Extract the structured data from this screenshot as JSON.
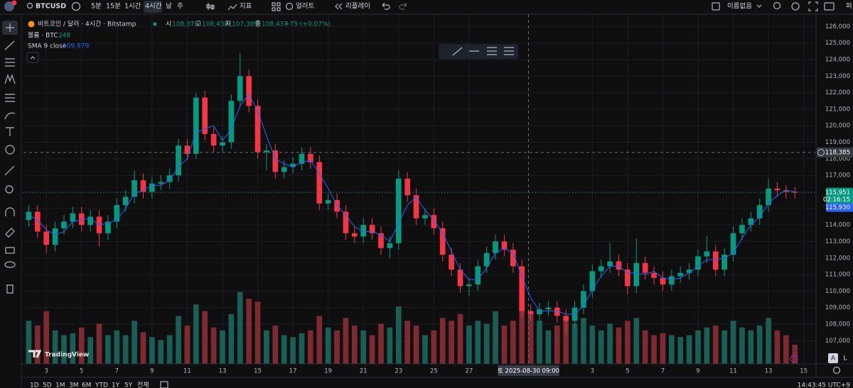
{
  "toolbar": {
    "symbol": "BTCUSD",
    "intervals": [
      "5분",
      "15분",
      "1시간",
      "4시간",
      "날",
      "주"
    ],
    "indicators": "지표",
    "alert": "얼러트",
    "replay": "리플레이",
    "layout_name": "이름없음",
    "publish": "퍼"
  },
  "legend": {
    "title": "비트코인 / 달러 · 4시간 · Bitstamp",
    "ohlc": [
      {
        "key": "시",
        "value": "108,376"
      },
      {
        "key": "고",
        "value": "108,438"
      },
      {
        "key": "저",
        "value": "107,389"
      },
      {
        "key": "종",
        "value": "108,437"
      }
    ],
    "change": "+75 (+0.07%)",
    "volume_name": "볼륨 · BTC",
    "volume_value": "248",
    "sma_name": "SMA 9 close",
    "sma_value": "109,979"
  },
  "watermark": "TradingView",
  "bottom_bar": {
    "ranges": [
      "1D",
      "5D",
      "1M",
      "3M",
      "6M",
      "YTD",
      "1Y",
      "5Y",
      "전체"
    ],
    "clock": "14:43:45 UTC+9",
    "buttons": [
      "A",
      "L"
    ]
  },
  "chart_data": {
    "type": "candlestick",
    "up_color": "#089981",
    "down_color": "#f23645",
    "x": [
      2,
      2.5,
      3,
      3.5,
      4,
      4.5,
      5,
      5.5,
      6,
      6.5,
      7,
      7.5,
      8,
      8.5,
      9,
      9.5,
      10,
      10.5,
      11,
      11.5,
      12,
      12.5,
      13,
      13.5,
      14,
      14.5,
      15,
      15.5,
      16,
      16.5,
      17,
      17.5,
      18,
      18.5,
      19,
      19.5,
      20,
      20.5,
      21,
      21.5,
      22,
      22.5,
      23,
      23.5,
      24,
      24.5,
      25,
      25.5,
      26,
      26.5,
      27,
      27.5,
      28,
      28.5,
      29,
      29.5,
      30,
      30.5,
      31,
      31.5,
      32,
      32.5,
      33,
      33.5,
      34,
      34.5,
      35,
      35.5,
      36,
      36.5,
      37,
      37.5,
      38,
      38.5,
      39,
      39.5,
      40,
      40.5,
      41,
      41.5,
      42,
      42.5,
      43,
      43.5,
      44,
      44.5,
      45,
      45.5
    ],
    "open": [
      114300,
      114800,
      113600,
      112800,
      113800,
      114200,
      114700,
      114000,
      114500,
      113500,
      114200,
      115200,
      115700,
      116700,
      116000,
      116500,
      116600,
      117000,
      118800,
      118300,
      121700,
      119500,
      118800,
      119000,
      121500,
      123000,
      121200,
      118400,
      118500,
      117200,
      117500,
      117700,
      118300,
      117800,
      115300,
      115500,
      114800,
      113500,
      113300,
      114000,
      113500,
      112600,
      112900,
      116800,
      115800,
      114400,
      114600,
      113800,
      112200,
      111300,
      110300,
      110400,
      111500,
      112300,
      113000,
      112500,
      111500,
      108800,
      108600,
      108900,
      109000,
      108500,
      108200,
      109000,
      110000,
      111200,
      111500,
      111800,
      111300,
      110300,
      111700,
      111100,
      110800,
      110400,
      110900,
      111100,
      111300,
      112100,
      112400,
      111300,
      112200,
      113500,
      114000,
      114400,
      115200,
      116200,
      116100,
      116000
    ],
    "high": [
      115200,
      115200,
      114000,
      114200,
      114600,
      115100,
      115100,
      114900,
      114900,
      114600,
      115600,
      116100,
      117300,
      117100,
      116900,
      117000,
      117400,
      119200,
      119200,
      122000,
      122100,
      119900,
      119400,
      121900,
      124400,
      123400,
      121600,
      118900,
      118900,
      117900,
      118100,
      118700,
      118700,
      118200,
      115900,
      115900,
      115200,
      113900,
      114400,
      114400,
      113900,
      113300,
      117300,
      117200,
      116200,
      115000,
      115000,
      114200,
      112600,
      111700,
      110800,
      111900,
      112700,
      113400,
      113400,
      112900,
      111900,
      109200,
      109300,
      109400,
      109400,
      108900,
      109400,
      110400,
      111600,
      111900,
      112900,
      112200,
      111700,
      113200,
      112100,
      111500,
      111200,
      111300,
      111500,
      111700,
      112500,
      113300,
      112800,
      112600,
      113900,
      114400,
      114800,
      115600,
      116800,
      116600,
      116400,
      116300
    ],
    "low": [
      113900,
      113200,
      112300,
      112400,
      113400,
      113800,
      113600,
      113600,
      112700,
      113100,
      113800,
      114800,
      115300,
      115600,
      115600,
      116100,
      116200,
      116600,
      117900,
      118000,
      119100,
      118400,
      118400,
      118600,
      121100,
      120800,
      118000,
      117300,
      116800,
      116800,
      117100,
      117300,
      117400,
      114900,
      114900,
      114400,
      113100,
      112900,
      112900,
      113100,
      112200,
      112000,
      112500,
      115400,
      114000,
      114000,
      113400,
      111800,
      110900,
      109900,
      109700,
      110000,
      111100,
      111900,
      112100,
      111100,
      108400,
      108200,
      108200,
      108500,
      108100,
      107400,
      107800,
      108600,
      109600,
      110800,
      111100,
      110900,
      109800,
      109900,
      110700,
      110400,
      110000,
      110000,
      110500,
      110700,
      110900,
      111700,
      110900,
      110900,
      111800,
      113100,
      113600,
      114000,
      114800,
      115700,
      115600,
      115600
    ],
    "close": [
      114800,
      113600,
      112800,
      113800,
      114200,
      114700,
      114000,
      114500,
      113500,
      114200,
      115200,
      115700,
      116700,
      116000,
      116500,
      116600,
      117000,
      118800,
      118300,
      121700,
      119500,
      118800,
      119000,
      121500,
      123000,
      121200,
      118400,
      118500,
      117200,
      117500,
      117700,
      118300,
      117800,
      115300,
      115500,
      114800,
      113500,
      113300,
      114000,
      113500,
      112600,
      112900,
      116800,
      115800,
      114400,
      114600,
      113800,
      112200,
      111300,
      110300,
      110400,
      111500,
      112300,
      113000,
      112500,
      111500,
      108800,
      108600,
      108900,
      109000,
      108500,
      108200,
      109000,
      110000,
      111200,
      111500,
      111800,
      111300,
      110300,
      111700,
      111100,
      110800,
      110400,
      110900,
      111100,
      111300,
      112100,
      112400,
      111300,
      112200,
      113500,
      114000,
      114400,
      115200,
      116200,
      116100,
      116000,
      115951
    ],
    "volume": [
      45,
      40,
      55,
      35,
      30,
      32,
      38,
      28,
      42,
      30,
      35,
      30,
      45,
      33,
      28,
      25,
      30,
      50,
      40,
      62,
      55,
      38,
      35,
      52,
      75,
      68,
      65,
      35,
      40,
      30,
      28,
      32,
      35,
      50,
      38,
      35,
      48,
      40,
      35,
      30,
      42,
      38,
      60,
      45,
      40,
      30,
      35,
      48,
      45,
      52,
      40,
      45,
      42,
      55,
      40,
      45,
      70,
      55,
      45,
      35,
      40,
      45,
      42,
      48,
      40,
      35,
      42,
      38,
      45,
      48,
      35,
      30,
      32,
      30,
      28,
      30,
      35,
      38,
      40,
      35,
      45,
      38,
      35,
      40,
      48,
      35,
      30,
      20
    ],
    "volume_lim": [
      0,
      100
    ],
    "volume_up_color": "#1b5e56",
    "volume_down_color": "#7e2a31",
    "sma": {
      "color": "#2962ff",
      "values": [
        114600,
        114300,
        113700,
        113400,
        113600,
        114200,
        114300,
        114400,
        114000,
        114100,
        114300,
        115000,
        115900,
        116100,
        116400,
        116400,
        116700,
        117500,
        118000,
        119600,
        119800,
        120000,
        119100,
        119800,
        121200,
        121900,
        120900,
        119400,
        118000,
        117700,
        117500,
        117800,
        117900,
        117100,
        116200,
        115200,
        114600,
        113900,
        113600,
        113600,
        113400,
        113000,
        114100,
        115200,
        115700,
        114900,
        114300,
        113500,
        112400,
        111300,
        110700,
        110700,
        111400,
        112300,
        112600,
        112300,
        110900,
        109600,
        108800,
        108800,
        108800,
        108600,
        108600,
        109100,
        110100,
        110900,
        111500,
        111500,
        111100,
        111100,
        111000,
        111200,
        110800,
        110700,
        110800,
        111100,
        111500,
        111900,
        111900,
        112000,
        112300,
        113200,
        114000,
        114500,
        115300,
        115800,
        116100,
        116000
      ]
    },
    "xlim": [
      1.7,
      46.7
    ],
    "xticks": [
      3,
      5,
      7,
      9,
      11,
      13,
      15,
      17,
      19,
      21,
      23,
      25,
      27,
      {
        "value": 34,
        "label": "3"
      },
      {
        "value": 36,
        "label": "5"
      },
      {
        "value": 38,
        "label": "7"
      },
      {
        "value": 40,
        "label": "9"
      },
      {
        "value": 42,
        "label": "11"
      },
      {
        "value": 44,
        "label": "13"
      },
      {
        "value": 46,
        "label": "15"
      }
    ],
    "ylim": [
      105600,
      126400
    ],
    "yticks": [
      {
        "value": 107000,
        "label": "107,000"
      },
      {
        "value": 108000,
        "label": "108,000"
      },
      {
        "value": 109000,
        "label": "109,000"
      },
      {
        "value": 110000,
        "label": "110,000"
      },
      {
        "value": 111000,
        "label": "111,000"
      },
      {
        "value": 112000,
        "label": "112,000"
      },
      {
        "value": 113000,
        "label": "113,000"
      },
      {
        "value": 114000,
        "label": "114,000"
      },
      {
        "value": 115000,
        "label": "115,000"
      },
      {
        "value": 116000,
        "label": "116,000"
      },
      {
        "value": 117000,
        "label": "117,000"
      },
      {
        "value": 118000,
        "label": "118,000"
      },
      {
        "value": 119000,
        "label": "119,000"
      },
      {
        "value": 120000,
        "label": "120,000"
      },
      {
        "value": 121000,
        "label": "121,000"
      },
      {
        "value": 122000,
        "label": "122,000"
      },
      {
        "value": 123000,
        "label": "123,000"
      },
      {
        "value": 124000,
        "label": "124,000"
      },
      {
        "value": 125000,
        "label": "125,000"
      },
      {
        "value": 126000,
        "label": "126,000"
      }
    ],
    "grid": true,
    "crosshair": {
      "x": 30.375,
      "x_label": "토 2025-08-30  09:00",
      "y": {
        "value": 118385,
        "label": "118,385"
      }
    },
    "last_price": {
      "value": 115951,
      "label": "115,951",
      "countdown": "02:16:15"
    },
    "sma_last": {
      "value": 115930,
      "label": "115,930"
    }
  }
}
